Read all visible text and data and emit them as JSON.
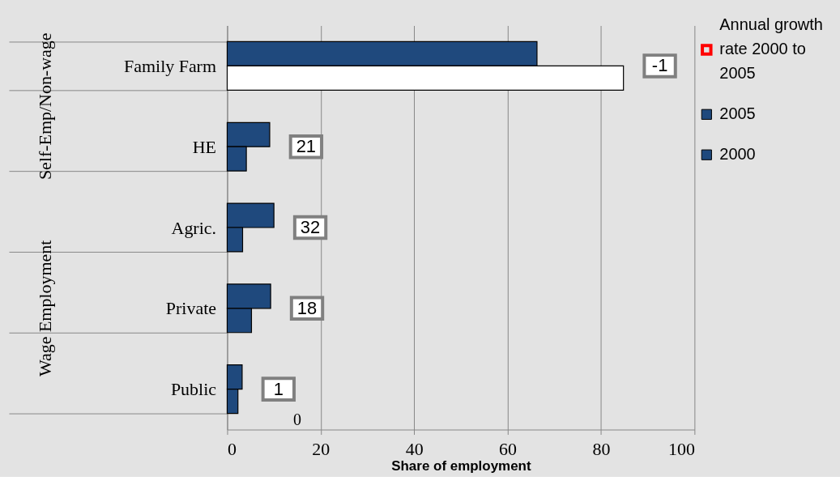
{
  "chart_data": {
    "type": "bar",
    "orientation": "horizontal",
    "categories": [
      "Family Farm",
      "HE",
      "Agric.",
      "Private",
      "Public"
    ],
    "series": [
      {
        "name": "Annual growth rate 2000 to 2005",
        "color": "#ff0000",
        "values": [
          null,
          null,
          null,
          null,
          null
        ],
        "value_labels": [
          "-1",
          "21",
          "32",
          "18",
          "1"
        ]
      },
      {
        "name": "2005",
        "color": "#1f497d",
        "values": [
          66.3,
          9.1,
          10,
          9.3,
          3.2
        ]
      },
      {
        "name": "2000",
        "color": "#1f497d",
        "colors": [
          "#ffffff",
          "#1f497d",
          "#1f497d",
          "#1f497d",
          "#1f497d"
        ],
        "values": [
          84.8,
          4.1,
          3.3,
          5.2,
          2.3
        ]
      }
    ],
    "xlabel": "Share of employment",
    "xlim": [
      0,
      100
    ],
    "xticks": [
      0,
      20,
      40,
      60,
      80,
      100
    ],
    "grid": "x",
    "legend": "right",
    "annotations": [
      "Self-Emp/Non-wage",
      "Wage Employment",
      "0"
    ]
  }
}
